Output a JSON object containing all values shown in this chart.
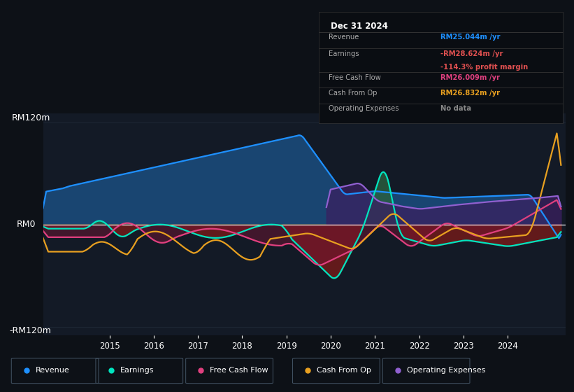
{
  "bg_color": "#0d1117",
  "plot_bg_color": "#131a26",
  "y_label_top": "RM120m",
  "y_label_zero": "RM0",
  "y_label_bottom": "-RM120m",
  "x_ticks": [
    2015,
    2016,
    2017,
    2018,
    2019,
    2020,
    2021,
    2022,
    2023,
    2024
  ],
  "colors": {
    "revenue": "#1e90ff",
    "revenue_fill": "#1a4a7a",
    "earnings": "#00e5c0",
    "earnings_fill_neg": "#6b1a1a",
    "earnings_fill_pos": "#2a6040",
    "free_cash_flow": "#e0407f",
    "free_cash_flow_fill": "#7a1535",
    "cash_from_op": "#e8a020",
    "operating_expenses": "#9060d0",
    "operating_expenses_fill": "#3a2060",
    "zero_line": "#ffffff",
    "grid_line": "#2a3545"
  },
  "legend_items": [
    {
      "label": "Revenue",
      "color": "#1e90ff"
    },
    {
      "label": "Earnings",
      "color": "#00e5c0"
    },
    {
      "label": "Free Cash Flow",
      "color": "#e0407f"
    },
    {
      "label": "Cash From Op",
      "color": "#e8a020"
    },
    {
      "label": "Operating Expenses",
      "color": "#9060d0"
    }
  ],
  "info_box": {
    "date": "Dec 31 2024",
    "revenue_label": "Revenue",
    "revenue_val": "RM25.044m /yr",
    "revenue_color": "#1e90ff",
    "earnings_label": "Earnings",
    "earnings_val": "-RM28.624m /yr",
    "earnings_color": "#e05050",
    "margin_val": "-114.3% profit margin",
    "margin_color": "#e05050",
    "fcf_label": "Free Cash Flow",
    "fcf_val": "RM26.009m /yr",
    "fcf_color": "#e0407f",
    "cashop_label": "Cash From Op",
    "cashop_val": "RM26.832m /yr",
    "cashop_color": "#e8a020",
    "opex_label": "Operating Expenses",
    "opex_val": "No data",
    "opex_color": "#888888"
  }
}
